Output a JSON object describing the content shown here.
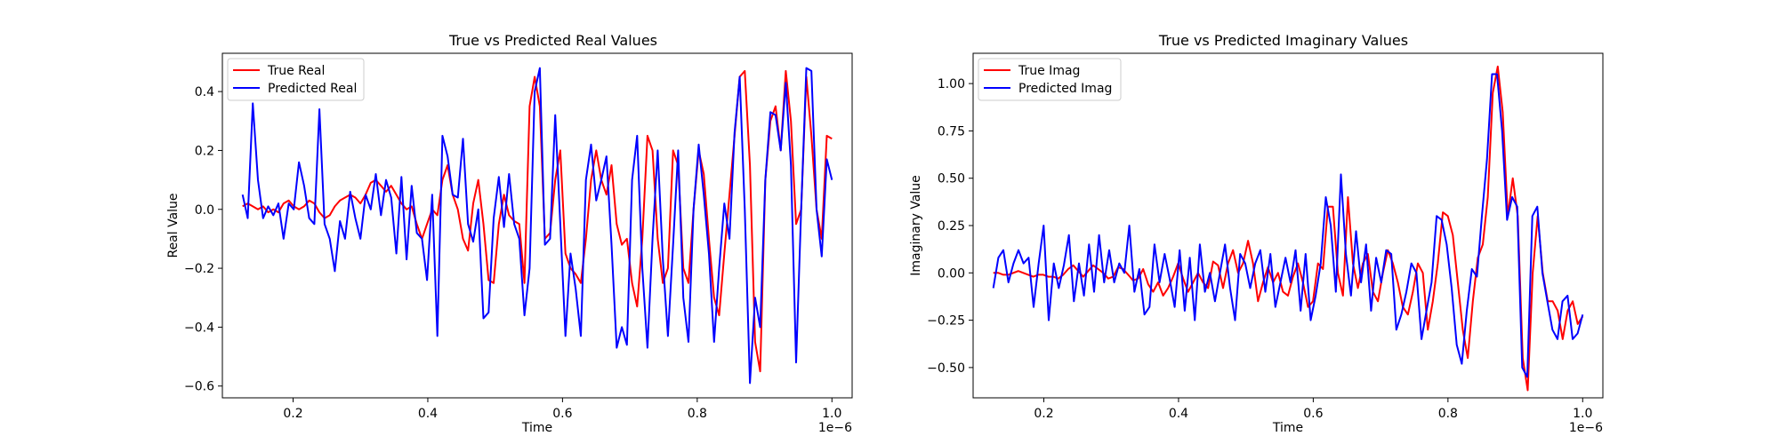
{
  "chart_data": [
    {
      "type": "line",
      "title": "True vs Predicted Real Values",
      "xlabel": "Time",
      "ylabel": "Real Value",
      "x_offset_label": "1e−6",
      "xlim": [
        0.095,
        1.03
      ],
      "ylim": [
        -0.64,
        0.53
      ],
      "xticks": [
        0.2,
        0.4,
        0.6,
        0.8,
        1.0
      ],
      "xtick_labels": [
        "0.2",
        "0.4",
        "0.6",
        "0.8",
        "1.0"
      ],
      "yticks": [
        -0.6,
        -0.4,
        -0.2,
        0.0,
        0.2,
        0.4
      ],
      "ytick_labels": [
        "−0.6",
        "−0.4",
        "−0.2",
        "0.0",
        "0.2",
        "0.4"
      ],
      "legend_position": "upper-left",
      "x_start": 0.125,
      "x_end": 1.0,
      "series": [
        {
          "name": "True Real",
          "color": "#ff0000",
          "values": [
            0.01,
            0.02,
            0.01,
            0.0,
            0.01,
            -0.01,
            0.0,
            -0.01,
            0.02,
            0.03,
            0.01,
            0.0,
            0.01,
            0.03,
            0.02,
            -0.01,
            -0.03,
            -0.02,
            0.01,
            0.03,
            0.04,
            0.05,
            0.04,
            0.02,
            0.05,
            0.09,
            0.1,
            0.08,
            0.06,
            0.08,
            0.05,
            0.02,
            0.0,
            0.01,
            -0.05,
            -0.1,
            -0.05,
            0.0,
            -0.02,
            0.1,
            0.15,
            0.05,
            0.0,
            -0.1,
            -0.14,
            0.02,
            0.1,
            -0.05,
            -0.24,
            -0.25,
            -0.05,
            0.05,
            -0.02,
            -0.04,
            -0.05,
            -0.25,
            0.35,
            0.45,
            0.35,
            -0.1,
            -0.08,
            0.1,
            0.2,
            -0.15,
            -0.2,
            -0.22,
            -0.25,
            -0.1,
            0.1,
            0.2,
            0.1,
            0.05,
            0.15,
            -0.05,
            -0.12,
            -0.1,
            -0.25,
            -0.33,
            -0.1,
            0.25,
            0.2,
            -0.1,
            -0.25,
            -0.2,
            0.2,
            0.15,
            -0.2,
            -0.25,
            0.0,
            0.2,
            0.12,
            -0.1,
            -0.3,
            -0.36,
            -0.15,
            0.05,
            0.25,
            0.45,
            0.47,
            0.15,
            -0.45,
            -0.55,
            0.1,
            0.3,
            0.35,
            0.2,
            0.47,
            0.3,
            -0.05,
            0.0,
            0.45,
            0.25,
            0.0,
            -0.1,
            0.25,
            0.24
          ]
        },
        {
          "name": "Predicted Real",
          "color": "#0000ff",
          "values": [
            0.05,
            -0.03,
            0.36,
            0.1,
            -0.03,
            0.01,
            -0.02,
            0.02,
            -0.1,
            0.02,
            0.0,
            0.16,
            0.08,
            -0.03,
            -0.05,
            0.34,
            -0.05,
            -0.1,
            -0.21,
            -0.04,
            -0.1,
            0.06,
            -0.03,
            -0.1,
            0.05,
            0.0,
            0.12,
            -0.02,
            0.1,
            0.04,
            -0.15,
            0.11,
            -0.17,
            0.08,
            -0.08,
            -0.1,
            -0.24,
            0.05,
            -0.43,
            0.25,
            0.18,
            0.05,
            0.04,
            0.24,
            -0.05,
            -0.11,
            0.0,
            -0.37,
            -0.35,
            -0.03,
            0.11,
            -0.06,
            0.12,
            -0.05,
            -0.1,
            -0.36,
            -0.2,
            0.4,
            0.48,
            -0.12,
            -0.1,
            0.32,
            -0.05,
            -0.43,
            -0.15,
            -0.27,
            -0.43,
            0.1,
            0.22,
            0.03,
            0.1,
            0.18,
            -0.12,
            -0.47,
            -0.4,
            -0.46,
            0.1,
            0.25,
            -0.2,
            -0.47,
            -0.1,
            0.2,
            -0.17,
            -0.43,
            -0.12,
            0.2,
            -0.3,
            -0.45,
            0.0,
            0.22,
            0.05,
            -0.15,
            -0.45,
            -0.2,
            0.02,
            -0.1,
            0.26,
            0.45,
            0.0,
            -0.59,
            -0.3,
            -0.4,
            0.1,
            0.33,
            0.32,
            0.2,
            0.43,
            0.15,
            -0.52,
            0.0,
            0.48,
            0.47,
            0.0,
            -0.16,
            0.17,
            0.1
          ]
        }
      ]
    },
    {
      "type": "line",
      "title": "True vs Predicted Imaginary Values",
      "xlabel": "Time",
      "ylabel": "Imaginary Value",
      "x_offset_label": "1e−6",
      "xlim": [
        0.095,
        1.03
      ],
      "ylim": [
        -0.66,
        1.16
      ],
      "xticks": [
        0.2,
        0.4,
        0.6,
        0.8,
        1.0
      ],
      "xtick_labels": [
        "0.2",
        "0.4",
        "0.6",
        "0.8",
        "1.0"
      ],
      "yticks": [
        -0.5,
        -0.25,
        0.0,
        0.25,
        0.5,
        0.75,
        1.0
      ],
      "ytick_labels": [
        "−0.50",
        "−0.25",
        "0.00",
        "0.25",
        "0.50",
        "0.75",
        "1.00"
      ],
      "legend_position": "upper-left",
      "x_start": 0.125,
      "x_end": 1.0,
      "series": [
        {
          "name": "True Imag",
          "color": "#ff0000",
          "values": [
            0.0,
            0.0,
            -0.01,
            -0.01,
            0.0,
            0.01,
            0.0,
            -0.01,
            -0.02,
            -0.01,
            -0.01,
            -0.02,
            -0.02,
            -0.03,
            -0.01,
            0.02,
            0.04,
            0.01,
            -0.02,
            0.01,
            0.04,
            0.02,
            0.0,
            -0.03,
            -0.02,
            0.03,
            0.02,
            -0.01,
            -0.04,
            -0.03,
            0.02,
            -0.06,
            -0.1,
            -0.05,
            -0.12,
            -0.08,
            -0.02,
            0.05,
            -0.03,
            -0.1,
            -0.05,
            0.0,
            -0.05,
            -0.08,
            0.06,
            0.04,
            -0.08,
            0.05,
            0.12,
            0.0,
            0.05,
            0.17,
            0.05,
            -0.15,
            -0.05,
            0.03,
            -0.05,
            0.0,
            -0.1,
            -0.12,
            -0.02,
            0.05,
            -0.05,
            -0.18,
            -0.15,
            0.05,
            0.02,
            0.35,
            0.35,
            0.0,
            -0.12,
            0.4,
            0.05,
            -0.08,
            0.05,
            0.1,
            -0.1,
            -0.15,
            0.0,
            0.12,
            0.05,
            -0.05,
            -0.18,
            -0.22,
            -0.1,
            0.05,
            0.0,
            -0.3,
            -0.15,
            0.05,
            0.32,
            0.3,
            0.2,
            -0.05,
            -0.3,
            -0.45,
            -0.15,
            0.08,
            0.15,
            0.4,
            0.95,
            1.09,
            0.85,
            0.3,
            0.5,
            0.3,
            -0.45,
            -0.62,
            0.0,
            0.3,
            0.0,
            -0.15,
            -0.15,
            -0.2,
            -0.35,
            -0.2,
            -0.15,
            -0.27,
            -0.23
          ]
        },
        {
          "name": "Predicted Imag",
          "color": "#0000ff",
          "values": [
            -0.08,
            0.08,
            0.12,
            -0.05,
            0.05,
            0.12,
            0.05,
            0.08,
            -0.18,
            0.05,
            0.25,
            -0.25,
            0.05,
            -0.08,
            0.04,
            0.2,
            -0.15,
            0.05,
            -0.12,
            0.15,
            -0.1,
            0.2,
            -0.05,
            0.12,
            -0.05,
            0.05,
            0.0,
            0.25,
            -0.1,
            0.02,
            -0.22,
            -0.18,
            0.15,
            -0.05,
            0.1,
            -0.03,
            -0.18,
            0.12,
            -0.2,
            0.08,
            -0.25,
            0.15,
            -0.1,
            0.0,
            -0.15,
            0.0,
            0.15,
            -0.08,
            -0.25,
            0.1,
            0.05,
            -0.08,
            0.05,
            0.12,
            -0.1,
            0.1,
            -0.18,
            -0.05,
            0.08,
            -0.05,
            0.12,
            -0.2,
            0.1,
            -0.25,
            -0.12,
            0.05,
            0.4,
            0.25,
            -0.1,
            0.52,
            0.1,
            -0.12,
            0.22,
            -0.05,
            0.15,
            -0.2,
            0.08,
            -0.05,
            0.12,
            0.1,
            -0.3,
            -0.22,
            -0.1,
            0.05,
            0.0,
            -0.35,
            -0.2,
            -0.05,
            0.3,
            0.28,
            0.15,
            -0.08,
            -0.38,
            -0.48,
            -0.2,
            0.02,
            -0.02,
            0.3,
            0.6,
            1.05,
            1.05,
            0.75,
            0.28,
            0.4,
            0.35,
            -0.5,
            -0.55,
            0.3,
            0.35,
            0.0,
            -0.15,
            -0.3,
            -0.35,
            -0.15,
            -0.12,
            -0.35,
            -0.32,
            -0.22
          ]
        }
      ]
    }
  ]
}
